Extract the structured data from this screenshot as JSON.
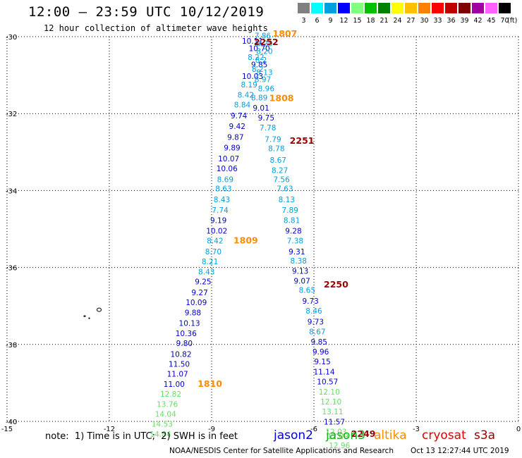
{
  "header": {
    "title": "12:00 – 23:59 UTC 10/12/2019",
    "subtitle": "12 hour collection of altimeter wave heights"
  },
  "colorbar": {
    "labels": [
      "3",
      "6",
      "9",
      "12",
      "15",
      "18",
      "21",
      "24",
      "27",
      "30",
      "33",
      "36",
      "39",
      "42",
      "45",
      "70"
    ],
    "unit": "(ft)",
    "colors": [
      "#808080",
      "#00ffff",
      "#00a0e0",
      "#0000ff",
      "#80ff80",
      "#00c000",
      "#008000",
      "#ffff00",
      "#ffc000",
      "#ff8000",
      "#ff0000",
      "#c00000",
      "#800000",
      "#a000a0",
      "#ff60ff",
      "#000000"
    ]
  },
  "map": {
    "x_ticks": [
      "-15",
      "-12",
      "-9",
      "-6",
      "-3",
      "0"
    ],
    "y_ticks": [
      "-30",
      "-32",
      "-34",
      "-36",
      "-38",
      "-40"
    ],
    "xlim": [
      -15,
      0
    ],
    "ylim": [
      -40,
      -30
    ],
    "grid": true,
    "island": {
      "lon": -12.3,
      "lat": -37.1
    }
  },
  "satellite_colors": {
    "jason2": "#0000cd",
    "jason3": "#20b020",
    "altika": "#ff8c00",
    "cryosat": "#dd0000",
    "s3a": "#990000",
    "cyan": "#00a0e0",
    "lightgreen": "#66dd66"
  },
  "chart_data": {
    "type": "scatter",
    "tracks": [
      {
        "name": "pass-A",
        "points": [
          {
            "lon": -7.5,
            "lat": -30.05,
            "v": "7.86",
            "c": "cyan"
          },
          {
            "lon": -7.8,
            "lat": -30.18,
            "v": "10.11",
            "c": "jason2"
          },
          {
            "lon": -7.45,
            "lat": -30.25,
            "v": "8.20",
            "c": "cyan"
          },
          {
            "lon": -7.6,
            "lat": -30.38,
            "v": "10.70",
            "c": "jason2"
          },
          {
            "lon": -7.45,
            "lat": -30.45,
            "v": "8.20",
            "c": "cyan"
          },
          {
            "lon": -7.7,
            "lat": -30.6,
            "v": "8.22",
            "c": "cyan"
          },
          {
            "lon": -7.55,
            "lat": -30.68,
            "v": "8.2",
            "c": "cyan"
          },
          {
            "lon": -7.6,
            "lat": -30.8,
            "v": "9.85",
            "c": "jason2"
          },
          {
            "lon": -7.65,
            "lat": -30.92,
            "v": "8.2",
            "c": "cyan"
          },
          {
            "lon": -7.45,
            "lat": -31.0,
            "v": "8.13",
            "c": "cyan"
          },
          {
            "lon": -7.8,
            "lat": -31.1,
            "v": "10.03",
            "c": "jason2"
          },
          {
            "lon": -7.5,
            "lat": -31.18,
            "v": "8.97",
            "c": "cyan"
          },
          {
            "lon": -7.9,
            "lat": -31.32,
            "v": "8.19",
            "c": "cyan"
          },
          {
            "lon": -7.4,
            "lat": -31.42,
            "v": "8.96",
            "c": "cyan"
          },
          {
            "lon": -8.0,
            "lat": -31.58,
            "v": "8.42",
            "c": "cyan"
          },
          {
            "lon": -7.6,
            "lat": -31.66,
            "v": "8.89",
            "c": "cyan"
          },
          {
            "lon": -8.1,
            "lat": -31.84,
            "v": "8.84",
            "c": "cyan"
          },
          {
            "lon": -7.55,
            "lat": -31.92,
            "v": "9.01",
            "c": "jason2"
          },
          {
            "lon": -8.2,
            "lat": -32.12,
            "v": "9.74",
            "c": "jason2"
          },
          {
            "lon": -7.4,
            "lat": -32.18,
            "v": "9.75",
            "c": "jason2"
          },
          {
            "lon": -8.25,
            "lat": -32.4,
            "v": "9.42",
            "c": "jason2"
          },
          {
            "lon": -7.35,
            "lat": -32.44,
            "v": "7.78",
            "c": "cyan"
          },
          {
            "lon": -8.3,
            "lat": -32.68,
            "v": "9.87",
            "c": "jason2"
          },
          {
            "lon": -7.2,
            "lat": -32.74,
            "v": "7.79",
            "c": "cyan"
          },
          {
            "lon": -8.4,
            "lat": -32.96,
            "v": "9.89",
            "c": "jason2"
          },
          {
            "lon": -7.1,
            "lat": -32.98,
            "v": "8.78",
            "c": "cyan"
          },
          {
            "lon": -8.5,
            "lat": -33.24,
            "v": "10.07",
            "c": "jason2"
          },
          {
            "lon": -7.05,
            "lat": -33.28,
            "v": "8.67",
            "c": "cyan"
          },
          {
            "lon": -8.55,
            "lat": -33.5,
            "v": "10.06",
            "c": "jason2"
          },
          {
            "lon": -7.0,
            "lat": -33.54,
            "v": "8.27",
            "c": "cyan"
          },
          {
            "lon": -8.6,
            "lat": -33.78,
            "v": "8.69",
            "c": "cyan"
          },
          {
            "lon": -6.95,
            "lat": -33.78,
            "v": "7.56",
            "c": "cyan"
          },
          {
            "lon": -8.65,
            "lat": -34.02,
            "v": "8.63",
            "c": "cyan"
          },
          {
            "lon": -6.85,
            "lat": -34.02,
            "v": "7.63",
            "c": "cyan"
          },
          {
            "lon": -8.7,
            "lat": -34.3,
            "v": "8.43",
            "c": "cyan"
          },
          {
            "lon": -6.8,
            "lat": -34.3,
            "v": "8.13",
            "c": "cyan"
          },
          {
            "lon": -8.75,
            "lat": -34.58,
            "v": "7.74",
            "c": "cyan"
          },
          {
            "lon": -6.7,
            "lat": -34.58,
            "v": "7.89",
            "c": "cyan"
          },
          {
            "lon": -8.8,
            "lat": -34.84,
            "v": "9.19",
            "c": "jason2"
          },
          {
            "lon": -6.65,
            "lat": -34.84,
            "v": "8.81",
            "c": "cyan"
          },
          {
            "lon": -8.85,
            "lat": -35.12,
            "v": "10.02",
            "c": "jason2"
          },
          {
            "lon": -6.6,
            "lat": -35.12,
            "v": "9.28",
            "c": "jason2"
          },
          {
            "lon": -8.9,
            "lat": -35.38,
            "v": "8.42",
            "c": "cyan"
          },
          {
            "lon": -6.55,
            "lat": -35.38,
            "v": "7.38",
            "c": "cyan"
          },
          {
            "lon": -8.95,
            "lat": -35.66,
            "v": "8.70",
            "c": "cyan"
          },
          {
            "lon": -6.5,
            "lat": -35.66,
            "v": "9.31",
            "c": "jason2"
          },
          {
            "lon": -9.05,
            "lat": -35.92,
            "v": "8.21",
            "c": "cyan"
          },
          {
            "lon": -6.45,
            "lat": -35.9,
            "v": "8.38",
            "c": "cyan"
          },
          {
            "lon": -9.15,
            "lat": -36.18,
            "v": "8.43",
            "c": "cyan"
          },
          {
            "lon": -6.4,
            "lat": -36.16,
            "v": "9.13",
            "c": "jason2"
          },
          {
            "lon": -9.25,
            "lat": -36.44,
            "v": "9.25",
            "c": "jason2"
          },
          {
            "lon": -6.35,
            "lat": -36.42,
            "v": "9.07",
            "c": "jason2"
          },
          {
            "lon": -9.35,
            "lat": -36.72,
            "v": "9.27",
            "c": "jason2"
          },
          {
            "lon": -6.2,
            "lat": -36.66,
            "v": "8.65",
            "c": "cyan"
          },
          {
            "lon": -9.45,
            "lat": -36.98,
            "v": "10.09",
            "c": "jason2"
          },
          {
            "lon": -6.1,
            "lat": -36.94,
            "v": "9.73",
            "c": "jason2"
          },
          {
            "lon": -9.55,
            "lat": -37.24,
            "v": "9.88",
            "c": "jason2"
          },
          {
            "lon": -6.0,
            "lat": -37.2,
            "v": "8.46",
            "c": "cyan"
          },
          {
            "lon": -9.65,
            "lat": -37.52,
            "v": "10.13",
            "c": "jason2"
          },
          {
            "lon": -5.95,
            "lat": -37.48,
            "v": "9.73",
            "c": "jason2"
          },
          {
            "lon": -9.75,
            "lat": -37.78,
            "v": "10.36",
            "c": "jason2"
          },
          {
            "lon": -5.9,
            "lat": -37.74,
            "v": "8.67",
            "c": "cyan"
          },
          {
            "lon": -9.8,
            "lat": -38.04,
            "v": "9.80",
            "c": "jason2"
          },
          {
            "lon": -5.85,
            "lat": -38.0,
            "v": "9.85",
            "c": "jason2"
          },
          {
            "lon": -9.9,
            "lat": -38.32,
            "v": "10.82",
            "c": "jason2"
          },
          {
            "lon": -5.8,
            "lat": -38.26,
            "v": "9.96",
            "c": "jason2"
          },
          {
            "lon": -9.95,
            "lat": -38.58,
            "v": "11.50",
            "c": "jason2"
          },
          {
            "lon": -5.75,
            "lat": -38.52,
            "v": "9.15",
            "c": "jason2"
          },
          {
            "lon": -10.0,
            "lat": -38.84,
            "v": "11.07",
            "c": "jason2"
          },
          {
            "lon": -5.7,
            "lat": -38.78,
            "v": "11.14",
            "c": "jason2"
          },
          {
            "lon": -10.1,
            "lat": -39.1,
            "v": "11.00",
            "c": "jason2"
          },
          {
            "lon": -5.6,
            "lat": -39.04,
            "v": "10.57",
            "c": "jason2"
          },
          {
            "lon": -10.2,
            "lat": -39.36,
            "v": "12.82",
            "c": "lightgreen"
          },
          {
            "lon": -5.55,
            "lat": -39.3,
            "v": "12.10",
            "c": "lightgreen"
          },
          {
            "lon": -10.3,
            "lat": -39.62,
            "v": "13.76",
            "c": "lightgreen"
          },
          {
            "lon": -5.5,
            "lat": -39.56,
            "v": "12.10",
            "c": "lightgreen"
          },
          {
            "lon": -10.35,
            "lat": -39.88,
            "v": "14.04",
            "c": "lightgreen"
          },
          {
            "lon": -5.45,
            "lat": -39.82,
            "v": "13.11",
            "c": "lightgreen"
          },
          {
            "lon": -10.45,
            "lat": -40.14,
            "v": "14.53",
            "c": "lightgreen"
          },
          {
            "lon": -5.4,
            "lat": -40.08,
            "v": "11.57",
            "c": "jason2"
          },
          {
            "lon": -10.5,
            "lat": -40.4,
            "v": "14.84",
            "c": "lightgreen"
          },
          {
            "lon": -5.35,
            "lat": -40.34,
            "v": "12.03",
            "c": "lightgreen"
          },
          {
            "lon": -5.3,
            "lat": -40.46,
            "v": "12.09",
            "c": "lightgreen"
          },
          {
            "lon": -5.25,
            "lat": -40.7,
            "v": "12.96",
            "c": "lightgreen"
          }
        ]
      }
    ],
    "time_labels": [
      {
        "lon": -6.85,
        "lat": -30.0,
        "text": "1807",
        "c": "altika"
      },
      {
        "lon": -7.4,
        "lat": -30.22,
        "text": "2252",
        "c": "s3a"
      },
      {
        "lon": -6.95,
        "lat": -31.68,
        "text": "1808",
        "c": "altika"
      },
      {
        "lon": -6.35,
        "lat": -32.78,
        "text": "2251",
        "c": "s3a"
      },
      {
        "lon": -8.0,
        "lat": -35.38,
        "text": "1809",
        "c": "altika"
      },
      {
        "lon": -5.35,
        "lat": -36.52,
        "text": "2250",
        "c": "s3a"
      },
      {
        "lon": -9.05,
        "lat": -39.1,
        "text": "1810",
        "c": "altika"
      },
      {
        "lon": -4.55,
        "lat": -40.4,
        "text": "2249",
        "c": "s3a"
      }
    ]
  },
  "footer": {
    "note": "note:  1) Time is in UTC;  2) SWH is in feet",
    "legend": [
      {
        "label": "jason2",
        "color": "#0000cd"
      },
      {
        "label": "jason3",
        "color": "#20b020"
      },
      {
        "label": "altika",
        "color": "#ff8c00"
      },
      {
        "label": "cryosat",
        "color": "#dd0000"
      },
      {
        "label": "s3a",
        "color": "#990000"
      }
    ],
    "credit": "NOAA/NESDIS Center for Satellite Applications and Research",
    "timestamp": "Oct 13 12:27:44 UTC 2019"
  }
}
